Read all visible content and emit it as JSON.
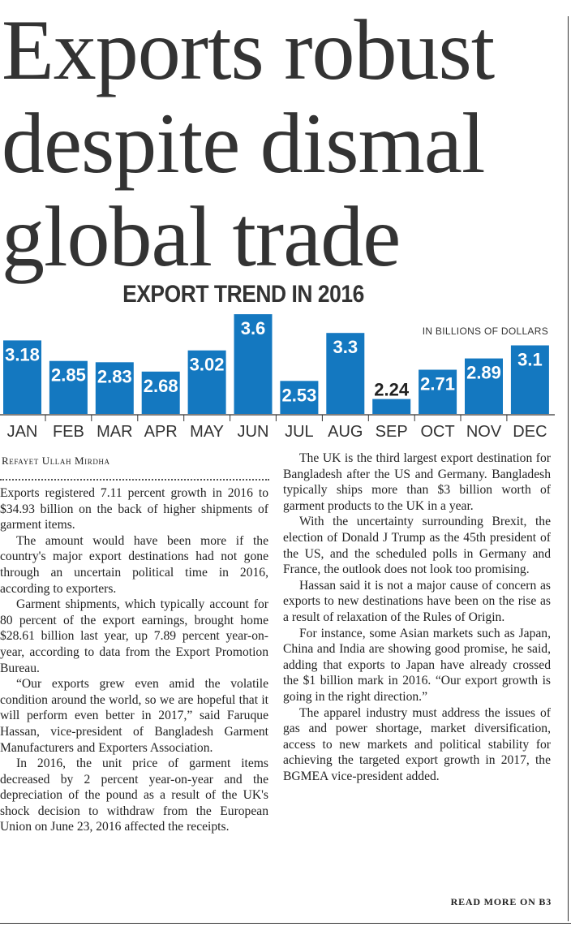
{
  "headline": {
    "line1": "Exports robust",
    "line2": "despite dismal",
    "line3": "global trade"
  },
  "chart_data": {
    "type": "bar",
    "title": "EXPORT TREND IN 2016",
    "unit": "IN BILLIONS OF DOLLARS",
    "categories": [
      "JAN",
      "FEB",
      "MAR",
      "APR",
      "MAY",
      "JUN",
      "JUL",
      "AUG",
      "SEP",
      "OCT",
      "NOV",
      "DEC"
    ],
    "values": [
      3.18,
      2.85,
      2.83,
      2.68,
      3.02,
      3.6,
      2.53,
      3.3,
      2.24,
      2.71,
      2.89,
      3.1
    ],
    "value_labels": [
      "3.18",
      "2.85",
      "2.83",
      "2.68",
      "3.02",
      "3.6",
      "2.53",
      "3.3",
      "2.24",
      "2.71",
      "2.89",
      "3.1"
    ],
    "bar_color": "#1478c0",
    "label_color_inside": "#ffffff",
    "label_color_outside": "#222222"
  },
  "byline": "Refayet Ullah Mirdha",
  "left_column": [
    "Exports registered 7.11 percent growth in 2016 to $34.93 billion on the back of higher shipments of garment items.",
    "The amount would have been more if the country's major export destinations had not gone through an uncertain political time in 2016, according to exporters.",
    "Garment shipments, which typically account for 80 percent of the export earnings, brought home $28.61 billion last year, up 7.89 percent year-on-year, according to data from the Export Promotion Bureau.",
    "“Our exports grew even amid the volatile condition around the world, so we are hopeful that it will perform even better in 2017,” said Faruque Hassan, vice-president of Bangladesh Garment Manufacturers and Exporters Association.",
    "In 2016, the unit price of garment items decreased by 2 percent year-on-year and the depreciation of the pound as a result of the UK's shock decision to withdraw from the European Union on June 23, 2016 affected the receipts."
  ],
  "right_column": [
    "The UK is the third largest export destination for Bangladesh after the US and Germany. Bangladesh typically ships more than $3 billion worth of garment products to the UK in a year.",
    "With the uncertainty surrounding Brexit, the election of Donald J Trump as the 45th president of the US, and the scheduled polls in Germany and France, the outlook does not look too promising.",
    "Hassan said it is not a major cause of concern as exports to new destinations have been on the rise as a result of relaxation of the Rules of Origin.",
    "For instance, some Asian markets such as Japan, China and India are showing good promise, he said, adding that exports to Japan have already crossed the $1 billion mark in 2016. “Our export growth is going in the right direction.”",
    "The apparel industry must address the issues of gas and power shortage, market diversification, access to new markets and political stability for achieving the targeted export growth in 2017, the BGMEA vice-president added."
  ],
  "read_more": "READ MORE ON B3"
}
